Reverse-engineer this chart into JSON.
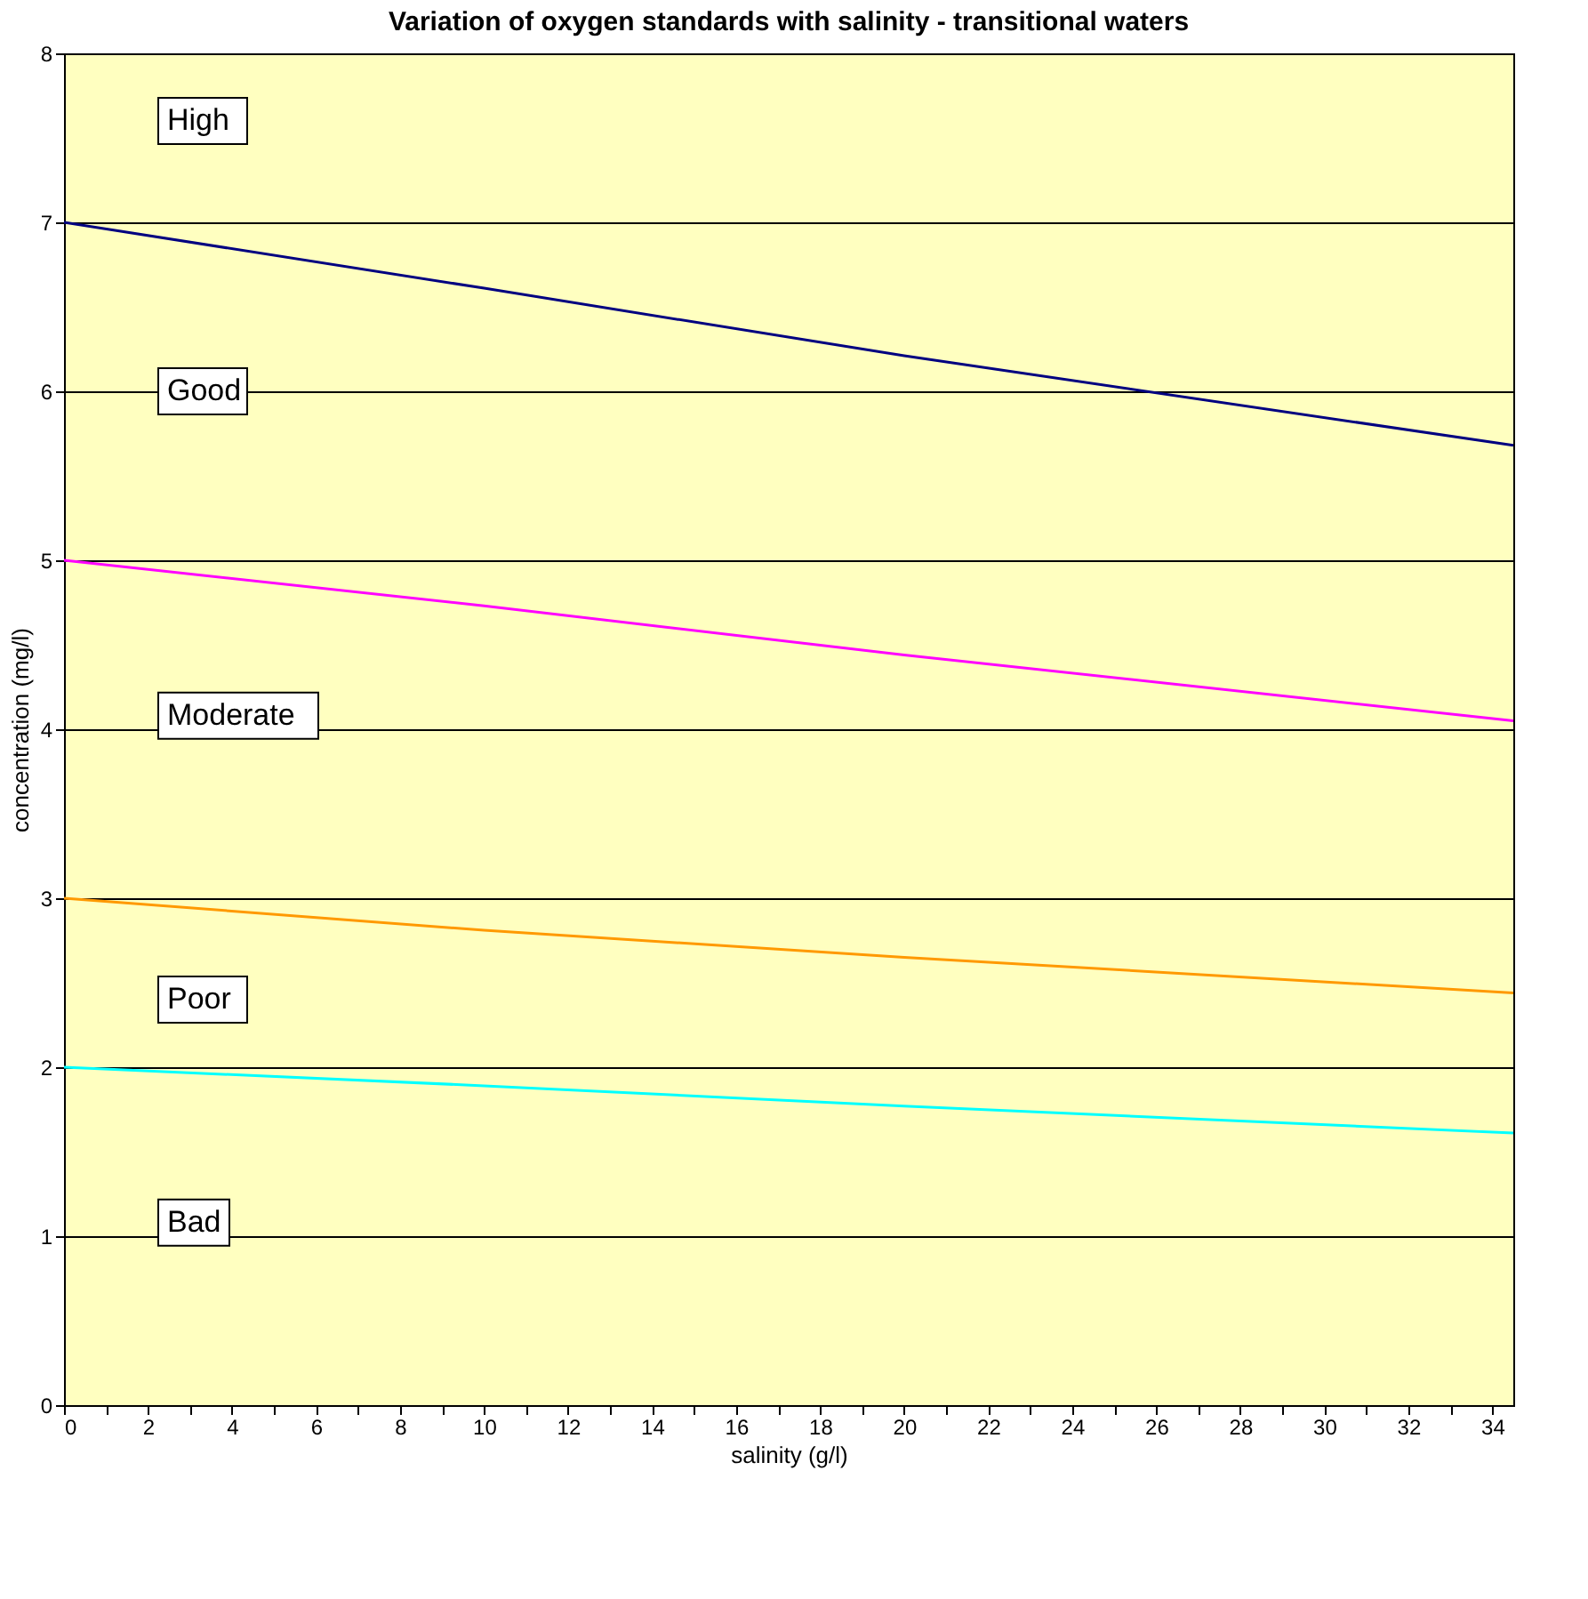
{
  "chart_data": {
    "type": "line",
    "title": "Variation of oxygen standards with salinity - transitional waters",
    "xlabel": "salinity (g/l)",
    "ylabel": "concentration (mg/l)",
    "x": [
      0,
      10,
      20,
      34.5
    ],
    "series": [
      {
        "color": "#000080",
        "values": [
          7.0,
          6.61,
          6.21,
          5.68
        ]
      },
      {
        "color": "#ff00ff",
        "values": [
          5.0,
          4.73,
          4.44,
          4.05
        ]
      },
      {
        "color": "#ff9900",
        "values": [
          3.0,
          2.81,
          2.65,
          2.44
        ]
      },
      {
        "color": "#00ffff",
        "values": [
          2.0,
          1.89,
          1.77,
          1.61
        ]
      }
    ],
    "xlim": [
      0,
      34.5
    ],
    "ylim": [
      0,
      8
    ],
    "xticks": [
      0,
      {
        "value": 1,
        "label": null
      },
      2,
      {
        "value": 3,
        "label": null
      },
      4,
      {
        "value": 5,
        "label": null
      },
      6,
      {
        "value": 7,
        "label": null
      },
      8,
      {
        "value": 9,
        "label": null
      },
      10,
      {
        "value": 11,
        "label": null
      },
      12,
      {
        "value": 13,
        "label": null
      },
      14,
      {
        "value": 15,
        "label": null
      },
      16,
      {
        "value": 17,
        "label": null
      },
      18,
      {
        "value": 19,
        "label": null
      },
      20,
      {
        "value": 21,
        "label": null
      },
      22,
      {
        "value": 23,
        "label": null
      },
      24,
      {
        "value": 25,
        "label": null
      },
      26,
      {
        "value": 27,
        "label": null
      },
      28,
      {
        "value": 29,
        "label": null
      },
      30,
      {
        "value": 31,
        "label": null
      },
      32,
      {
        "value": 33,
        "label": null
      },
      34
    ],
    "yticks": [
      0,
      1,
      2,
      3,
      4,
      5,
      6,
      7,
      8
    ],
    "grid": "y",
    "marker": "none",
    "line_style": "solid",
    "annotations": [
      "High",
      "Good",
      "Moderate",
      "Poor",
      "Bad"
    ]
  }
}
